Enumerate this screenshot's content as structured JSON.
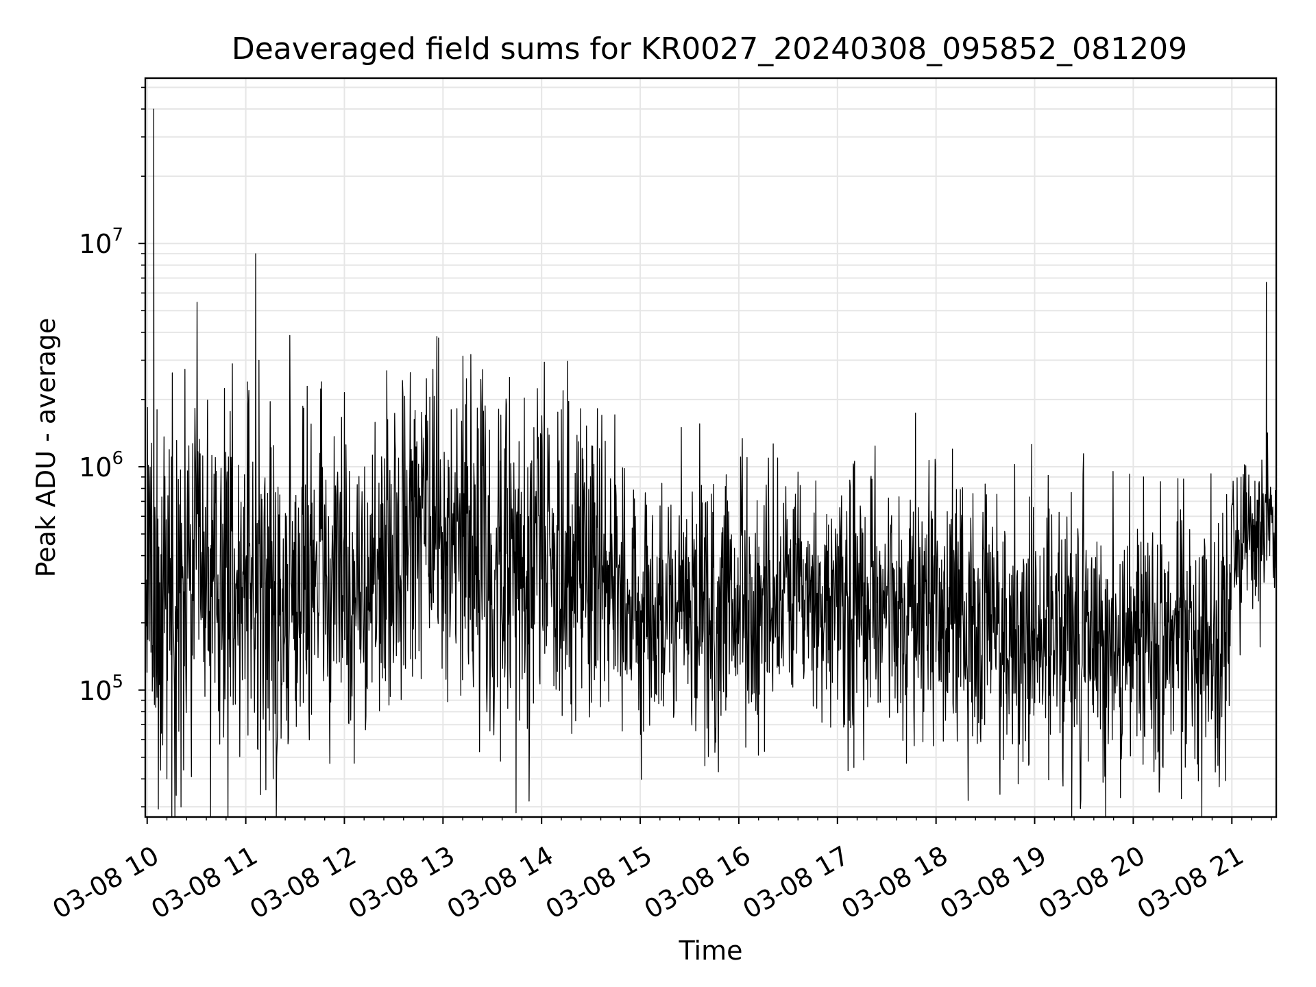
{
  "chart_data": {
    "type": "line",
    "title": "Deaveraged field sums for KR0027_20240308_095852_081209",
    "xlabel": "Time",
    "ylabel": "Peak ADU - average",
    "x_axis": {
      "kind": "time",
      "start": "2024-03-08T09:58:52",
      "end": "2024-03-08T21:27:00",
      "ticks": [
        {
          "t": "2024-03-08T10:00",
          "label": "03-08 10"
        },
        {
          "t": "2024-03-08T11:00",
          "label": "03-08 11"
        },
        {
          "t": "2024-03-08T12:00",
          "label": "03-08 12"
        },
        {
          "t": "2024-03-08T13:00",
          "label": "03-08 13"
        },
        {
          "t": "2024-03-08T14:00",
          "label": "03-08 14"
        },
        {
          "t": "2024-03-08T15:00",
          "label": "03-08 15"
        },
        {
          "t": "2024-03-08T16:00",
          "label": "03-08 16"
        },
        {
          "t": "2024-03-08T17:00",
          "label": "03-08 17"
        },
        {
          "t": "2024-03-08T18:00",
          "label": "03-08 18"
        },
        {
          "t": "2024-03-08T19:00",
          "label": "03-08 19"
        },
        {
          "t": "2024-03-08T20:00",
          "label": "03-08 20"
        },
        {
          "t": "2024-03-08T21:00",
          "label": "03-08 21"
        }
      ]
    },
    "y_axis": {
      "scale": "log",
      "ylim": [
        27000,
        55000000
      ],
      "ticks": [
        {
          "value": 100000,
          "base": "10",
          "exp": "5"
        },
        {
          "value": 1000000,
          "base": "10",
          "exp": "6"
        },
        {
          "value": 10000000,
          "base": "10",
          "exp": "7"
        }
      ]
    },
    "grid": true,
    "line_color": "#000000",
    "series_trend": [
      {
        "t": "2024-03-08T09:59",
        "median": 250000,
        "spread": 0.45
      },
      {
        "t": "2024-03-08T10:30",
        "median": 300000,
        "spread": 0.4
      },
      {
        "t": "2024-03-08T11:00",
        "median": 350000,
        "spread": 0.4
      },
      {
        "t": "2024-03-08T11:20",
        "median": 200000,
        "spread": 0.4
      },
      {
        "t": "2024-03-08T11:45",
        "median": 400000,
        "spread": 0.4
      },
      {
        "t": "2024-03-08T12:15",
        "median": 250000,
        "spread": 0.4
      },
      {
        "t": "2024-03-08T12:45",
        "median": 600000,
        "spread": 0.35
      },
      {
        "t": "2024-03-08T13:30",
        "median": 350000,
        "spread": 0.4
      },
      {
        "t": "2024-03-08T14:00",
        "median": 450000,
        "spread": 0.4
      },
      {
        "t": "2024-03-08T14:45",
        "median": 400000,
        "spread": 0.35
      },
      {
        "t": "2024-03-08T14:50",
        "median": 220000,
        "spread": 0.3
      },
      {
        "t": "2024-03-08T16:00",
        "median": 230000,
        "spread": 0.3
      },
      {
        "t": "2024-03-08T17:00",
        "median": 230000,
        "spread": 0.3
      },
      {
        "t": "2024-03-08T18:00",
        "median": 230000,
        "spread": 0.3
      },
      {
        "t": "2024-03-08T19:00",
        "median": 180000,
        "spread": 0.3
      },
      {
        "t": "2024-03-08T20:00",
        "median": 170000,
        "spread": 0.32
      },
      {
        "t": "2024-03-08T20:58",
        "median": 160000,
        "spread": 0.32
      },
      {
        "t": "2024-03-08T21:00",
        "median": 450000,
        "spread": 0.22
      },
      {
        "t": "2024-03-08T21:27",
        "median": 550000,
        "spread": 0.18
      }
    ],
    "notable_points": [
      {
        "t": "2024-03-08T10:04",
        "value": 40000000
      },
      {
        "t": "2024-03-08T10:06",
        "value": 1800000
      },
      {
        "t": "2024-03-08T10:12",
        "value": 40000
      },
      {
        "t": "2024-03-08T11:01",
        "value": 2400000
      },
      {
        "t": "2024-03-08T11:06",
        "value": 9000000
      },
      {
        "t": "2024-03-08T11:08",
        "value": 3000000
      },
      {
        "t": "2024-03-08T12:00",
        "value": 2150000
      },
      {
        "t": "2024-03-08T12:06",
        "value": 47000
      },
      {
        "t": "2024-03-08T12:52",
        "value": 2050000
      },
      {
        "t": "2024-03-08T13:05",
        "value": 1800000
      },
      {
        "t": "2024-03-08T13:35",
        "value": 48000
      },
      {
        "t": "2024-03-08T14:12",
        "value": 1800000
      },
      {
        "t": "2024-03-08T15:25",
        "value": 1500000
      },
      {
        "t": "2024-03-08T16:05",
        "value": 1100000
      },
      {
        "t": "2024-03-08T17:10",
        "value": 45000
      },
      {
        "t": "2024-03-08T17:42",
        "value": 47000
      },
      {
        "t": "2024-03-08T18:10",
        "value": 1200000
      },
      {
        "t": "2024-03-08T18:50",
        "value": 38000
      },
      {
        "t": "2024-03-08T21:21",
        "value": 6700000
      }
    ]
  }
}
